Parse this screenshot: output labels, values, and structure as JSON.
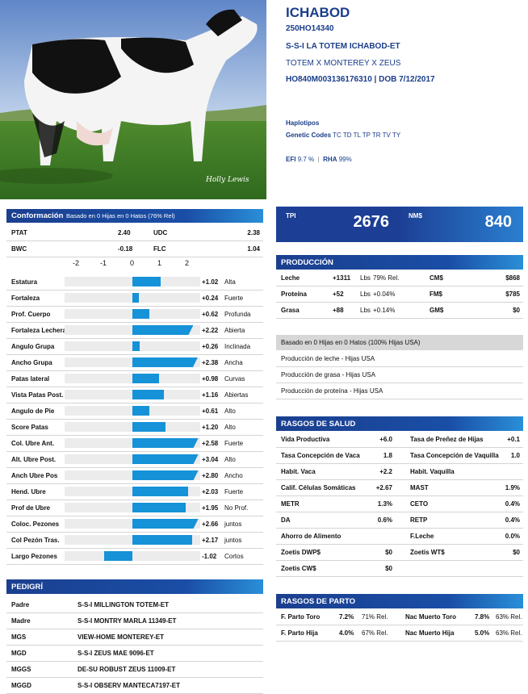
{
  "header": {
    "name": "ICHABOD",
    "code": "250HO14340",
    "full_name": "S-S-I LA TOTEM ICHABOD-ET",
    "pedigree_line": "TOTEM X MONTEREY X ZEUS",
    "id_dob": "HO840M003136176310 | DOB 7/12/2017",
    "haplo_label": "Haplotipos",
    "genetic_codes_label": "Genetic Codes",
    "genetic_codes_value": "TC TD TL TP TR TV TY",
    "efi_label": "EFI",
    "efi_value": "9.7 %",
    "rha_label": "RHA",
    "rha_value": "99%",
    "photo_signature": "Holly Lewis"
  },
  "tpi": {
    "label": "TPI",
    "value": "2676"
  },
  "nm": {
    "label": "NM$",
    "value": "840"
  },
  "conformation": {
    "title": "Conformación",
    "subtitle": "Basado en 0 Hijas en 0 Hatos (76% Rel)",
    "ptat_label": "PTAT",
    "ptat_value": "2.40",
    "udc_label": "UDC",
    "udc_value": "2.38",
    "bwc_label": "BWC",
    "bwc_value": "-0.18",
    "flc_label": "FLC",
    "flc_value": "1.04",
    "scale": [
      "-2",
      "-1",
      "0",
      "1",
      "2"
    ],
    "traits": [
      {
        "name": "Estatura",
        "value": 1.02,
        "label": "+1.02",
        "desc": "Alta"
      },
      {
        "name": "Fortaleza",
        "value": 0.24,
        "label": "+0.24",
        "desc": "Fuerte"
      },
      {
        "name": "Prof. Cuerpo",
        "value": 0.62,
        "label": "+0.62",
        "desc": "Profunda"
      },
      {
        "name": "Fortaleza Lechera",
        "value": 2.22,
        "label": "+2.22",
        "desc": "Abierta"
      },
      {
        "name": "Angulo Grupa",
        "value": 0.26,
        "label": "+0.26",
        "desc": "Inclinada"
      },
      {
        "name": "Ancho Grupa",
        "value": 2.38,
        "label": "+2.38",
        "desc": "Ancha"
      },
      {
        "name": "Patas lateral",
        "value": 0.98,
        "label": "+0.98",
        "desc": "Curvas"
      },
      {
        "name": "Vista Patas Post.",
        "value": 1.16,
        "label": "+1.16",
        "desc": "Abiertas"
      },
      {
        "name": "Angulo de Pie",
        "value": 0.61,
        "label": "+0.61",
        "desc": "Alto"
      },
      {
        "name": "Score Patas",
        "value": 1.2,
        "label": "+1.20",
        "desc": "Alto"
      },
      {
        "name": "Col. Ubre Ant.",
        "value": 2.58,
        "label": "+2.58",
        "desc": "Fuerte"
      },
      {
        "name": "Alt. Ubre Post.",
        "value": 3.04,
        "label": "+3.04",
        "desc": "Alto"
      },
      {
        "name": "Anch Ubre Pos",
        "value": 2.8,
        "label": "+2.80",
        "desc": "Ancho"
      },
      {
        "name": "Hend. Ubre",
        "value": 2.03,
        "label": "+2.03",
        "desc": "Fuerte"
      },
      {
        "name": "Prof de Ubre",
        "value": 1.95,
        "label": "+1.95",
        "desc": "No Prof."
      },
      {
        "name": "Coloc. Pezones",
        "value": 2.66,
        "label": "+2.66",
        "desc": "juntos"
      },
      {
        "name": "Col Pezón Tras.",
        "value": 2.17,
        "label": "+2.17",
        "desc": "juntos"
      },
      {
        "name": "Largo Pezones",
        "value": -1.02,
        "label": "-1.02",
        "desc": "Cortos"
      }
    ]
  },
  "production": {
    "title": "PRODUCCIÓN",
    "rows": [
      {
        "name": "Leche",
        "lbs": "+1311",
        "unit": "Lbs",
        "rel": "79% Rel.",
        "k": "CM$",
        "v": "$868"
      },
      {
        "name": "Proteína",
        "lbs": "+52",
        "unit": "Lbs",
        "rel": "+0.04%",
        "k": "FM$",
        "v": "$785"
      },
      {
        "name": "Grasa",
        "lbs": "+88",
        "unit": "Lbs",
        "rel": "+0.14%",
        "k": "GM$",
        "v": "$0"
      }
    ],
    "daughters_header": "Basado en 0 Hijas en 0 Hatos (100% Hijas USA)",
    "daughters": [
      "Producción de leche - Hijas USA",
      "Producción de grasa - Hijas USA",
      "Producción de proteína - Hijas USA"
    ]
  },
  "health": {
    "title": "RASGOS DE SALUD",
    "rows": [
      {
        "a": "Vida Productiva",
        "av": "+6.0",
        "b": "Tasa de Preñez de Hijas",
        "bv": "+0.1"
      },
      {
        "a": "Tasa Concepción de Vaca",
        "av": "1.8",
        "b": "Tasa Concepción de Vaquilla",
        "bv": "1.0"
      },
      {
        "a": "Habit. Vaca",
        "av": "+2.2",
        "b": "Habit. Vaquilla",
        "bv": ""
      },
      {
        "a": "Calif. Células Somáticas",
        "av": "+2.67",
        "b": "MAST",
        "bv": "1.9%"
      },
      {
        "a": "METR",
        "av": "1.3%",
        "b": "CETO",
        "bv": "0.4%"
      },
      {
        "a": "DA",
        "av": "0.6%",
        "b": "RETP",
        "bv": "0.4%"
      },
      {
        "a": "Ahorro de Alimento",
        "av": "",
        "b": "F.Leche",
        "bv": "0.0%"
      },
      {
        "a": "Zoetis DWP$",
        "av": "$0",
        "b": "Zoetis WT$",
        "bv": "$0"
      },
      {
        "a": "Zoetis CW$",
        "av": "$0",
        "b": "",
        "bv": ""
      }
    ]
  },
  "pedigree": {
    "title": "PEDIGRÍ",
    "rows": [
      {
        "k": "Padre",
        "v": "S-S-I MILLINGTON TOTEM-ET"
      },
      {
        "k": "Madre",
        "v": "S-S-I MONTRY MARLA 11349-ET"
      },
      {
        "k": "MGS",
        "v": "VIEW-HOME MONTEREY-ET"
      },
      {
        "k": "MGD",
        "v": "S-S-I ZEUS MAE 9096-ET"
      },
      {
        "k": "MGGS",
        "v": "DE-SU ROBUST ZEUS 11009-ET"
      },
      {
        "k": "MGGD",
        "v": "S-S-I OBSERV MANTECA7197-ET"
      }
    ]
  },
  "calving": {
    "title": "RASGOS DE PARTO",
    "rows": [
      {
        "a": "F. Parto Toro",
        "av": "7.2%",
        "ar": "71% Rel.",
        "b": "Nac Muerto Toro",
        "bv": "7.8%",
        "br": "63% Rel."
      },
      {
        "a": "F. Parto Hija",
        "av": "4.0%",
        "ar": "67% Rel.",
        "b": "Nac Muerto Hija",
        "bv": "5.0%",
        "br": "63% Rel."
      }
    ]
  }
}
